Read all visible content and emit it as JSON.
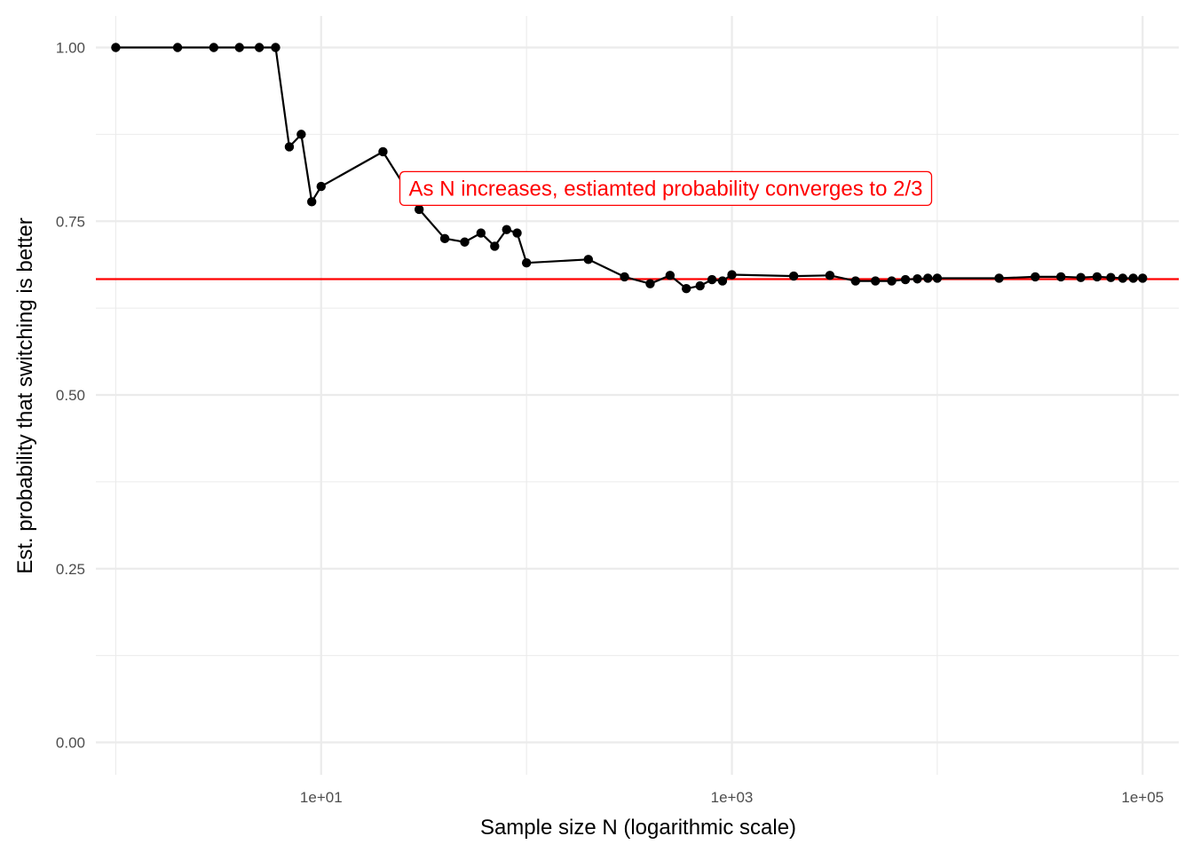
{
  "chart_data": {
    "type": "line",
    "xlabel": "Sample size N (logarithmic scale)",
    "ylabel": "Est. probability that switching is better",
    "x_scale": "log10",
    "xlim": [
      0.8,
      150000
    ],
    "ylim": [
      0,
      1
    ],
    "grid": true,
    "x_ticks": [
      {
        "value": 10,
        "label": "1e+01"
      },
      {
        "value": 1000,
        "label": "1e+03"
      },
      {
        "value": 100000,
        "label": "1e+05"
      }
    ],
    "y_ticks": [
      {
        "value": 0,
        "label": "0.00"
      },
      {
        "value": 0.25,
        "label": "0.25"
      },
      {
        "value": 0.5,
        "label": "0.50"
      },
      {
        "value": 0.75,
        "label": "0.75"
      },
      {
        "value": 1,
        "label": "1.00"
      }
    ],
    "series": [
      {
        "color": "#000000",
        "marker": "point",
        "x": [
          1,
          2,
          3,
          4,
          5,
          6,
          7,
          8,
          9,
          10,
          20,
          30,
          40,
          50,
          60,
          70,
          80,
          90,
          100,
          200,
          300,
          400,
          500,
          600,
          700,
          800,
          900,
          1000,
          2000,
          3000,
          4000,
          5000,
          6000,
          7000,
          8000,
          9000,
          10000,
          20000,
          30000,
          40000,
          50000,
          60000,
          70000,
          80000,
          90000,
          100000
        ],
        "y": [
          1.0,
          1.0,
          1.0,
          1.0,
          1.0,
          1.0,
          0.857,
          0.875,
          0.778,
          0.8,
          0.85,
          0.767,
          0.725,
          0.72,
          0.733,
          0.714,
          0.738,
          0.733,
          0.69,
          0.695,
          0.67,
          0.66,
          0.672,
          0.653,
          0.657,
          0.666,
          0.664,
          0.673,
          0.671,
          0.672,
          0.664,
          0.664,
          0.664,
          0.666,
          0.667,
          0.668,
          0.668,
          0.668,
          0.67,
          0.67,
          0.669,
          0.67,
          0.669,
          0.668,
          0.668,
          0.668
        ]
      }
    ],
    "reference_lines": [
      {
        "orientation": "horizontal",
        "value": 0.6667,
        "color": "#ff0000"
      }
    ],
    "annotations": [
      {
        "text": "As N increases, estiamted probability converges to 2/3",
        "color": "#ff0000"
      }
    ],
    "colors": {
      "grid": "#ebebeb",
      "series": "#000000",
      "reference": "#ff0000",
      "annotation": "#ff0000"
    }
  }
}
